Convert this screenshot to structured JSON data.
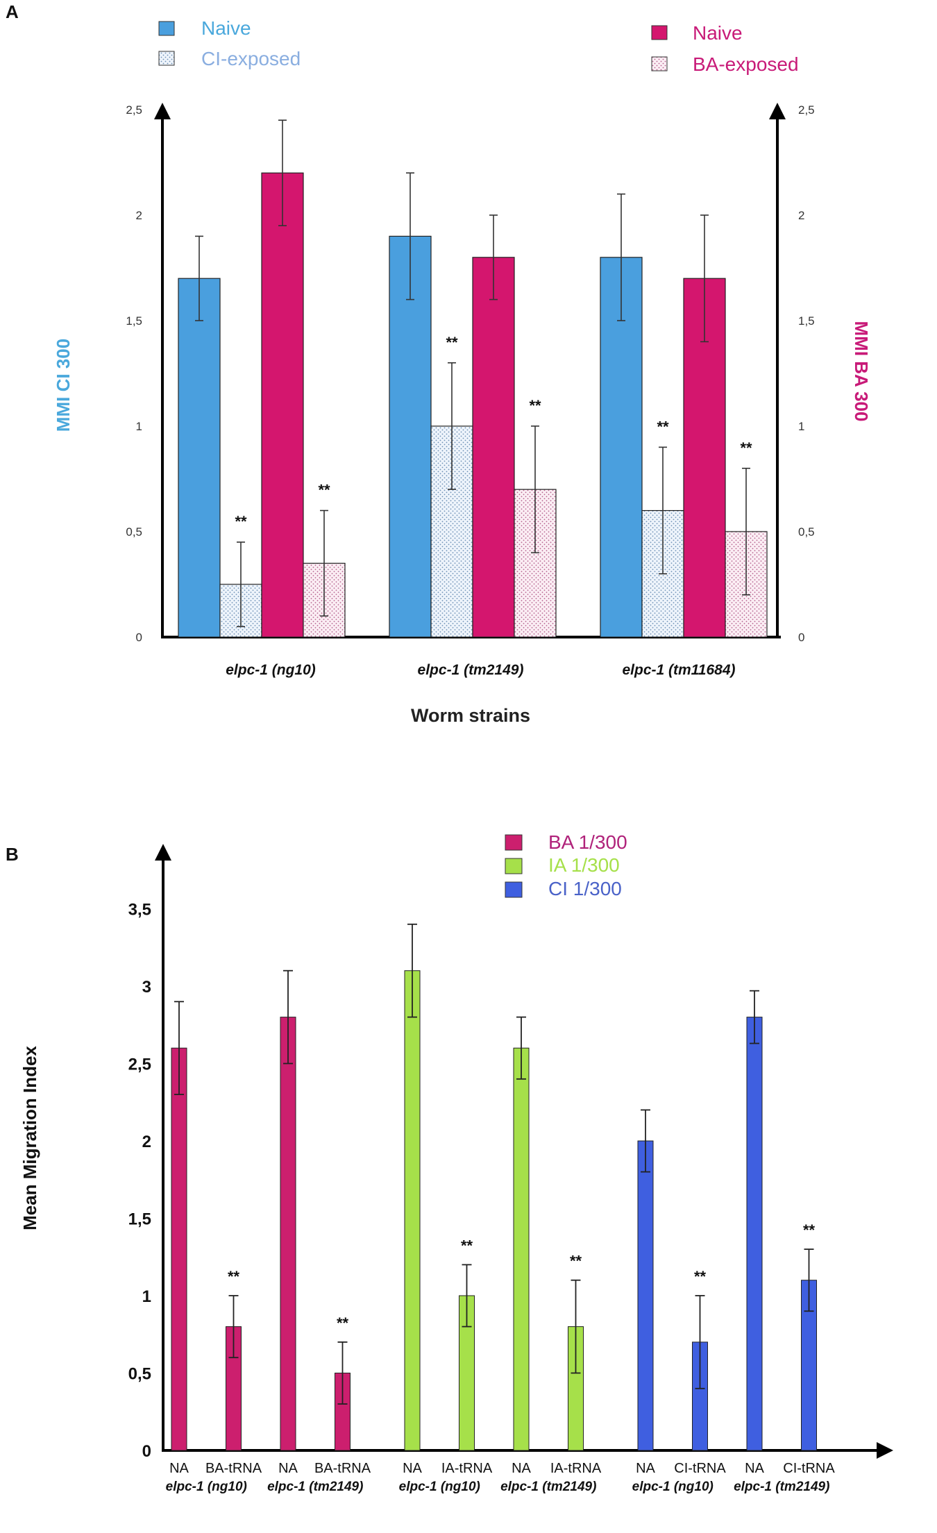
{
  "chart_data": [
    {
      "panel": "A",
      "type": "bar",
      "categories": [
        "elpc-1 (ng10)",
        "elpc-1 (tm2149)",
        "elpc-1 (tm11684)"
      ],
      "xlabel": "Worm strains",
      "ylabel_left": "MMI CI 300",
      "ylabel_right": "MMI BA 300",
      "ylim": [
        0,
        2.5
      ],
      "yticks": [
        "0",
        "0,5",
        "1",
        "1,5",
        "2",
        "2,5"
      ],
      "legend_left": [
        "Naive",
        "CI-exposed"
      ],
      "legend_right": [
        "Naive",
        "BA-exposed"
      ],
      "series": [
        {
          "name": "Naive (CI)",
          "color": "#4a9fde",
          "pattern": false,
          "values": [
            1.7,
            1.9,
            1.8
          ],
          "errors": [
            0.2,
            0.3,
            0.3
          ],
          "stars": [
            "",
            "",
            ""
          ]
        },
        {
          "name": "CI-exposed",
          "color": "#4a9fde",
          "pattern": true,
          "values": [
            0.25,
            1.0,
            0.6
          ],
          "errors": [
            0.2,
            0.3,
            0.3
          ],
          "stars": [
            "**",
            "**",
            "**"
          ]
        },
        {
          "name": "Naive (BA)",
          "color": "#d4166e",
          "pattern": false,
          "values": [
            2.2,
            1.8,
            1.7
          ],
          "errors": [
            0.25,
            0.2,
            0.3
          ],
          "stars": [
            "",
            "",
            ""
          ]
        },
        {
          "name": "BA-exposed",
          "color": "#d4166e",
          "pattern": true,
          "values": [
            0.35,
            0.7,
            0.5
          ],
          "errors": [
            0.25,
            0.3,
            0.3
          ],
          "stars": [
            "**",
            "**",
            "**"
          ]
        }
      ]
    },
    {
      "panel": "B",
      "type": "bar",
      "ylabel": "Mean Migration Index",
      "ylim": [
        0,
        3.5
      ],
      "yticks": [
        "0",
        "0,5",
        "1",
        "1,5",
        "2",
        "2,5",
        "3",
        "3,5"
      ],
      "legend": [
        {
          "label": "BA 1/300",
          "color": "#cc1f6e"
        },
        {
          "label": "IA 1/300",
          "color": "#a6e04a"
        },
        {
          "label": "CI 1/300",
          "color": "#3f5fe0"
        }
      ],
      "bars": [
        {
          "line1": "NA",
          "line2": "elpc-1 (ng10)",
          "group": 0,
          "value": 2.6,
          "error": 0.3,
          "star": ""
        },
        {
          "line1": "BA-tRNA",
          "line2": "",
          "group": 0,
          "value": 0.8,
          "error": 0.2,
          "star": "**"
        },
        {
          "line1": "NA",
          "line2": "elpc-1 (tm2149)",
          "group": 0,
          "value": 2.8,
          "error": 0.3,
          "star": ""
        },
        {
          "line1": "BA-tRNA",
          "line2": "",
          "group": 0,
          "value": 0.5,
          "error": 0.2,
          "star": "**"
        },
        {
          "line1": "NA",
          "line2": "elpc-1 (ng10)",
          "group": 1,
          "value": 3.1,
          "error": 0.3,
          "star": ""
        },
        {
          "line1": "IA-tRNA",
          "line2": "",
          "group": 1,
          "value": 1.0,
          "error": 0.2,
          "star": "**"
        },
        {
          "line1": "NA",
          "line2": "elpc-1 (tm2149)",
          "group": 1,
          "value": 2.6,
          "error": 0.2,
          "star": ""
        },
        {
          "line1": "IA-tRNA",
          "line2": "",
          "group": 1,
          "value": 0.8,
          "error": 0.3,
          "star": "**"
        },
        {
          "line1": "NA",
          "line2": "elpc-1 (ng10)",
          "group": 2,
          "value": 2.0,
          "error": 0.2,
          "star": ""
        },
        {
          "line1": "CI-tRNA",
          "line2": "",
          "group": 2,
          "value": 0.7,
          "error": 0.3,
          "star": "**"
        },
        {
          "line1": "NA",
          "line2": "elpc-1 (tm2149)",
          "group": 2,
          "value": 2.8,
          "error": 0.17,
          "star": ""
        },
        {
          "line1": "CI-tRNA",
          "line2": "",
          "group": 2,
          "value": 1.1,
          "error": 0.2,
          "star": "**"
        }
      ]
    }
  ],
  "panel_labels": [
    "A",
    "B"
  ],
  "colors": {
    "ci_label": "#4aa8dc",
    "ba_label": "#c81a78",
    "legendB_BA": "#b0227a",
    "legendB_IA": "#a6e04a",
    "legendB_CI": "#4a62c8"
  }
}
